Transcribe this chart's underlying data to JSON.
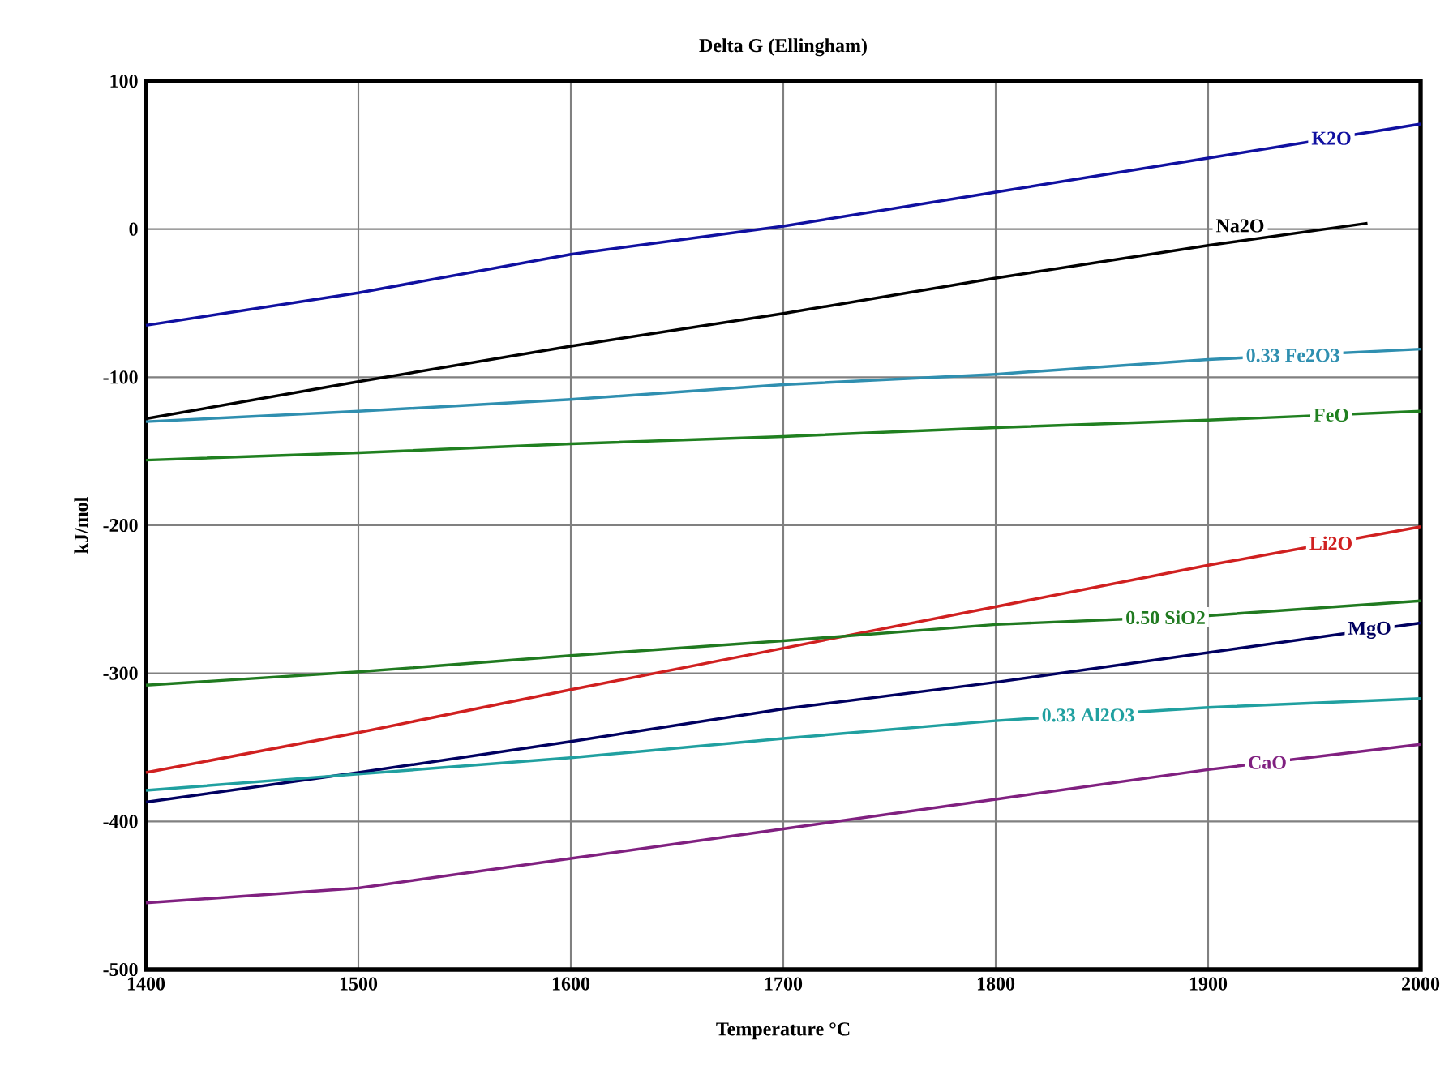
{
  "chart_data": {
    "type": "line",
    "title": "Delta G (Ellingham)",
    "xlabel": "Temperature °C",
    "ylabel": "kJ/mol",
    "xlim": [
      1400,
      2000
    ],
    "ylim": [
      -500,
      100
    ],
    "xticks": [
      1400,
      1500,
      1600,
      1700,
      1800,
      1900,
      2000
    ],
    "yticks": [
      -500,
      -400,
      -300,
      -200,
      -100,
      0,
      100
    ],
    "grid": true,
    "marker": "none",
    "line_style": "solid",
    "series": [
      {
        "name": "K2O",
        "color": "#1010a0",
        "x": [
          1400,
          1500,
          1600,
          1700,
          1800,
          1900,
          2000
        ],
        "values": [
          -65,
          -43,
          -17,
          2,
          25,
          48,
          71
        ]
      },
      {
        "name": "Na2O",
        "color": "#000000",
        "x": [
          1400,
          1500,
          1600,
          1700,
          1800,
          1900,
          1975
        ],
        "values": [
          -128,
          -103,
          -79,
          -57,
          -33,
          -11,
          4
        ]
      },
      {
        "name": "0.33 Fe2O3",
        "color": "#2f8fb0",
        "x": [
          1400,
          1500,
          1600,
          1700,
          1800,
          1900,
          2000
        ],
        "values": [
          -130,
          -123,
          -115,
          -105,
          -98,
          -88,
          -81
        ]
      },
      {
        "name": "FeO",
        "color": "#208020",
        "x": [
          1400,
          1500,
          1600,
          1700,
          1800,
          1900,
          2000
        ],
        "values": [
          -156,
          -151,
          -145,
          -140,
          -134,
          -129,
          -123
        ]
      },
      {
        "name": "Li2O",
        "color": "#d02020",
        "x": [
          1400,
          1500,
          1600,
          1700,
          1800,
          1900,
          2000
        ],
        "values": [
          -367,
          -340,
          -311,
          -283,
          -255,
          -227,
          -201
        ]
      },
      {
        "name": "0.50 SiO2",
        "color": "#207a20",
        "x": [
          1400,
          1500,
          1600,
          1700,
          1800,
          1900,
          2000
        ],
        "values": [
          -308,
          -299,
          -288,
          -278,
          -267,
          -261,
          -251
        ]
      },
      {
        "name": "MgO",
        "color": "#000060",
        "x": [
          1400,
          1500,
          1600,
          1700,
          1800,
          1900,
          2000
        ],
        "values": [
          -387,
          -367,
          -346,
          -324,
          -306,
          -286,
          -266
        ]
      },
      {
        "name": "0.33 Al2O3",
        "color": "#20a0a0",
        "x": [
          1400,
          1500,
          1600,
          1700,
          1800,
          1900,
          2000
        ],
        "values": [
          -379,
          -368,
          -357,
          -344,
          -332,
          -323,
          -317
        ]
      },
      {
        "name": "CaO",
        "color": "#802080",
        "x": [
          1400,
          1500,
          1600,
          1700,
          1800,
          1900,
          2000
        ],
        "values": [
          -455,
          -445,
          -425,
          -405,
          -385,
          -365,
          -348
        ]
      }
    ]
  }
}
